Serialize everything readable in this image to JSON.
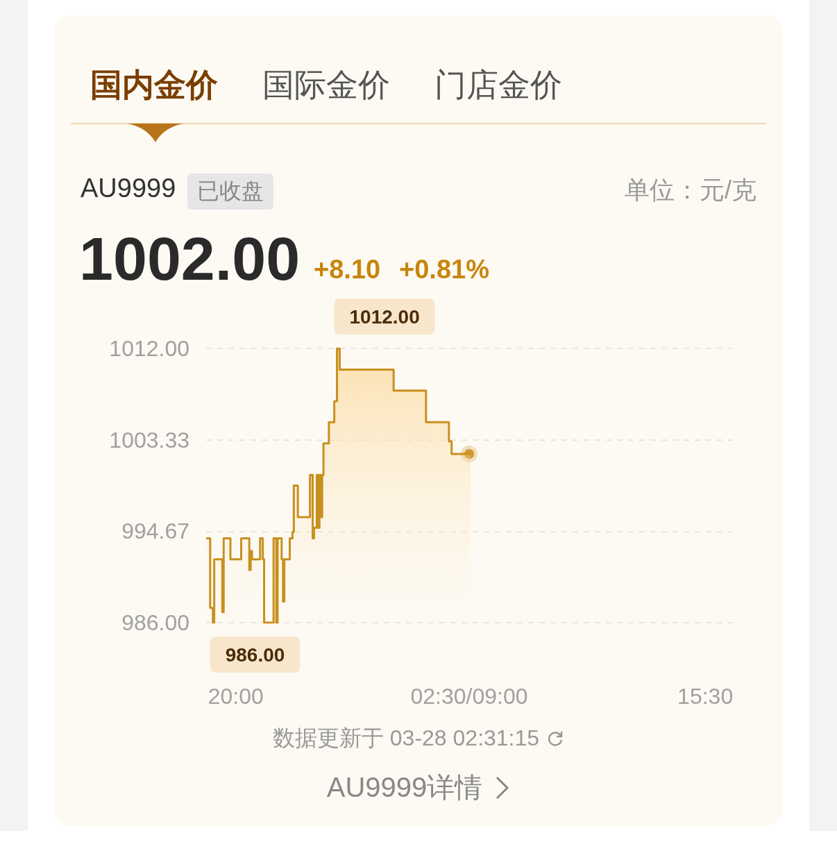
{
  "chart_data": {
    "type": "step",
    "title": "AU9999",
    "subtitle": "已收盘",
    "annotations": [
      "国内金价",
      "国际金价",
      "门店金价",
      "单位：元/克",
      "1002.00",
      "+8.10",
      "+0.81%",
      "数据更新于 03-28 02:31:15",
      "AU9999详情",
      "1012.00",
      "986.00"
    ],
    "categories": [
      null,
      null,
      null,
      null,
      null,
      null,
      null,
      null,
      null,
      null,
      null,
      null,
      null,
      null,
      null,
      null,
      null,
      null,
      null,
      null,
      null,
      null,
      "20:00",
      null,
      null,
      null,
      null,
      null,
      null,
      null,
      null,
      null,
      null,
      null,
      null,
      null,
      null,
      null,
      null,
      null,
      null,
      null,
      null,
      null,
      null,
      null,
      null,
      null,
      null,
      null,
      null,
      null,
      null,
      null,
      null,
      null,
      null,
      null,
      null,
      null,
      null,
      null,
      null,
      null,
      null,
      null,
      null,
      null,
      null,
      null,
      null,
      null,
      null,
      null,
      null,
      null,
      null,
      null,
      null,
      null,
      null,
      null,
      null,
      null,
      null,
      null,
      null,
      null,
      null,
      null,
      null,
      null,
      null,
      null,
      null,
      null,
      null,
      null,
      null,
      null,
      null,
      null,
      null,
      null,
      null,
      null,
      null,
      null,
      null,
      null,
      null,
      null,
      null,
      null,
      null,
      null,
      null,
      null,
      null,
      null,
      null,
      null,
      null,
      null,
      null,
      null,
      null,
      null,
      null,
      null,
      null,
      null,
      null,
      null,
      null,
      null,
      null,
      null,
      null,
      null,
      null,
      null,
      null,
      null,
      null,
      null,
      null,
      null,
      null,
      null,
      null,
      null,
      null,
      null,
      null,
      null,
      null,
      null,
      null,
      null,
      null,
      null,
      null,
      null,
      null,
      null,
      null,
      null,
      null,
      null,
      null,
      null,
      null,
      null,
      null,
      null,
      null,
      null,
      null,
      null,
      null,
      null,
      null,
      null,
      null,
      null,
      null,
      null,
      null,
      null,
      null,
      null,
      null,
      null,
      null,
      "02:30/09:00",
      null,
      null,
      null,
      null,
      null,
      null,
      null,
      null,
      null,
      null,
      null,
      null,
      null,
      null,
      null,
      null,
      null,
      null,
      null,
      null,
      null,
      null,
      null,
      null,
      null,
      null,
      null,
      null,
      null,
      null,
      null,
      null,
      null,
      null,
      null,
      null,
      null,
      null,
      null,
      null,
      null,
      null,
      null,
      null,
      null,
      null,
      null,
      null,
      null,
      null,
      null,
      null,
      null,
      null,
      null,
      null,
      null,
      null,
      null,
      null,
      null,
      null,
      null,
      null,
      null,
      null,
      null,
      null,
      null,
      null,
      null,
      null,
      null,
      null,
      null,
      null,
      null,
      null,
      null,
      null,
      null,
      null,
      null,
      null,
      null,
      null,
      null,
      null,
      null,
      null,
      null,
      null,
      null,
      null,
      null,
      null,
      null,
      null,
      null,
      null,
      null,
      null,
      null,
      null,
      null,
      null,
      null,
      null,
      null,
      null,
      null,
      null,
      null,
      null,
      null,
      null,
      null,
      null,
      null,
      null,
      null,
      null,
      null,
      null,
      null,
      null,
      null,
      null,
      null,
      null,
      null,
      null,
      null,
      null,
      null,
      null,
      null,
      null,
      null,
      null,
      null,
      null,
      null,
      null,
      null,
      null,
      null,
      null,
      null,
      null,
      null,
      null,
      null,
      null,
      null,
      null,
      null,
      null,
      null,
      null,
      null,
      null,
      null,
      null,
      null,
      null,
      null,
      null,
      null,
      null,
      null,
      null,
      null,
      null,
      "15:30",
      null,
      null,
      null,
      null,
      null,
      null,
      null,
      null,
      null,
      null,
      null,
      null,
      null,
      null,
      null,
      null,
      null,
      null,
      null,
      null
    ],
    "ylim": [
      986,
      1012
    ],
    "yticks": [
      {
        "value": 986,
        "label": "986.00"
      },
      {
        "value": 994.67,
        "label": "994.67"
      },
      {
        "value": 1003.33,
        "label": "1003.33"
      },
      {
        "value": 1012,
        "label": "1012.00"
      }
    ],
    "grid": "y",
    "marker": "none",
    "series": [
      {
        "color": "#c8901e",
        "values": [
          994,
          994,
          994,
          987.4,
          987.4,
          986,
          992,
          992,
          992,
          992,
          992,
          992,
          987,
          994,
          994,
          994,
          994,
          994,
          992,
          992,
          992,
          992,
          992,
          992,
          992,
          992,
          994,
          994,
          994,
          994,
          994,
          994,
          991,
          992.8,
          992,
          992,
          992,
          992,
          992,
          992,
          994,
          994,
          992,
          986,
          986,
          986,
          986,
          986,
          986,
          986,
          994,
          994,
          986,
          994,
          994,
          994,
          992,
          988,
          992,
          992,
          992,
          992,
          994,
          994,
          994.6,
          999,
          999,
          999,
          996,
          996,
          996,
          996,
          996,
          996,
          996,
          996,
          996,
          1000,
          1000,
          994,
          995,
          995,
          1000,
          995,
          1000,
          996,
          1000,
          1003,
          1003,
          1003,
          1003,
          1005,
          1005,
          1005,
          1005,
          1007,
          1007,
          1012,
          1012,
          1010,
          1010,
          1010,
          1010,
          1010,
          1010,
          1010,
          1010,
          1010,
          1010,
          1010,
          1010,
          1010,
          1010,
          1010,
          1010,
          1010,
          1010,
          1010,
          1010,
          1010,
          1010,
          1010,
          1010,
          1010,
          1010,
          1010,
          1010,
          1010,
          1010,
          1010,
          1010,
          1010,
          1010,
          1010,
          1010,
          1010,
          1010,
          1010,
          1010,
          1008,
          1008,
          1008,
          1008,
          1008,
          1008,
          1008,
          1008,
          1008,
          1008,
          1008,
          1008,
          1008,
          1008,
          1008,
          1008,
          1008,
          1008,
          1008,
          1008,
          1008,
          1008,
          1008,
          1008,
          1005,
          1005,
          1005,
          1005,
          1005,
          1005,
          1005,
          1005,
          1005,
          1005,
          1005,
          1005,
          1005,
          1005,
          1005,
          1005,
          1005,
          1003.2,
          1003.2,
          1002,
          1002,
          1002,
          1002,
          1002,
          1002,
          1002,
          1002,
          1002,
          1002,
          1002,
          1002,
          1002,
          1002,
          null,
          null,
          null,
          null,
          null,
          null,
          null,
          null,
          null,
          null,
          null,
          null,
          null,
          null,
          null,
          null,
          null,
          null,
          null,
          null,
          null,
          null,
          null,
          null,
          null,
          null,
          null,
          null,
          null,
          null,
          null,
          null,
          null,
          null,
          null,
          null,
          null,
          null,
          null,
          null,
          null,
          null,
          null,
          null,
          null,
          null,
          null,
          null,
          null,
          null,
          null,
          null,
          null,
          null,
          null,
          null,
          null,
          null,
          null,
          null,
          null,
          null,
          null,
          null,
          null,
          null,
          null,
          null,
          null,
          null,
          null,
          null,
          null,
          null,
          null,
          null,
          null,
          null,
          null,
          null,
          null,
          null,
          null,
          null,
          null,
          null,
          null,
          null,
          null,
          null,
          null,
          null,
          null,
          null,
          null,
          null,
          null,
          null,
          null,
          null,
          null,
          null,
          null,
          null,
          null,
          null,
          null,
          null,
          null,
          null,
          null,
          null,
          null,
          null,
          null,
          null,
          null,
          null,
          null,
          null,
          null,
          null,
          null,
          null,
          null,
          null,
          null,
          null,
          null,
          null,
          null,
          null,
          null,
          null,
          null,
          null,
          null,
          null,
          null,
          null,
          null,
          null,
          null,
          null,
          null,
          null,
          null,
          null,
          null,
          null,
          null,
          null,
          null,
          null,
          null,
          null,
          null,
          null,
          null,
          null,
          null,
          null,
          null,
          null,
          null,
          null,
          null,
          null,
          null,
          null,
          null,
          null,
          null,
          null,
          null,
          null,
          null,
          null,
          null,
          null,
          null,
          null,
          null,
          null,
          null,
          null,
          null,
          null,
          null,
          null,
          null,
          null,
          null,
          null,
          null
        ]
      },
      {
        "type": "scatter",
        "color": "#c8860e",
        "marker": "circle",
        "x": [
          "02:30/09:00"
        ],
        "values": [
          1002
        ]
      }
    ]
  }
}
